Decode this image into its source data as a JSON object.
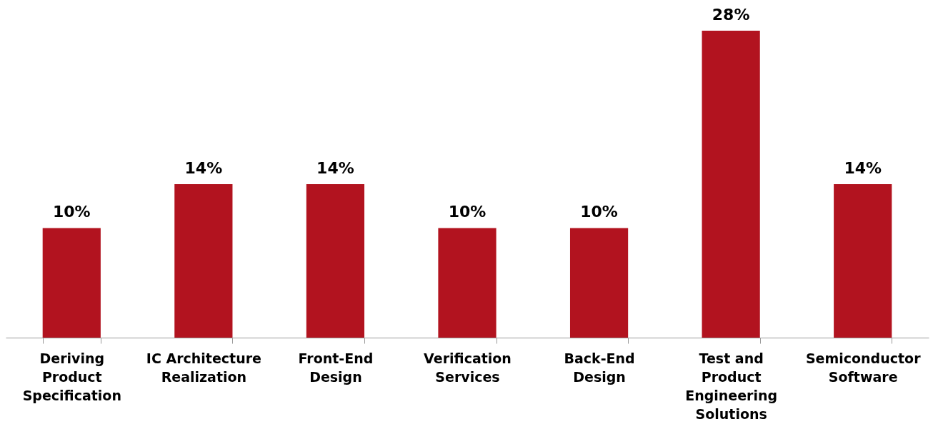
{
  "chart_data": {
    "type": "bar",
    "categories": [
      "Deriving Product Specification",
      "IC Architecture Realization",
      "Front-End Design",
      "Verification Services",
      "Back-End Design",
      "Test and Product Engineering Solutions",
      "Semiconductor Software"
    ],
    "values": [
      10,
      14,
      14,
      10,
      10,
      28,
      14
    ],
    "value_labels": [
      "10%",
      "14%",
      "14%",
      "10%",
      "10%",
      "28%",
      "14%"
    ],
    "color": "#b2131f"
  }
}
